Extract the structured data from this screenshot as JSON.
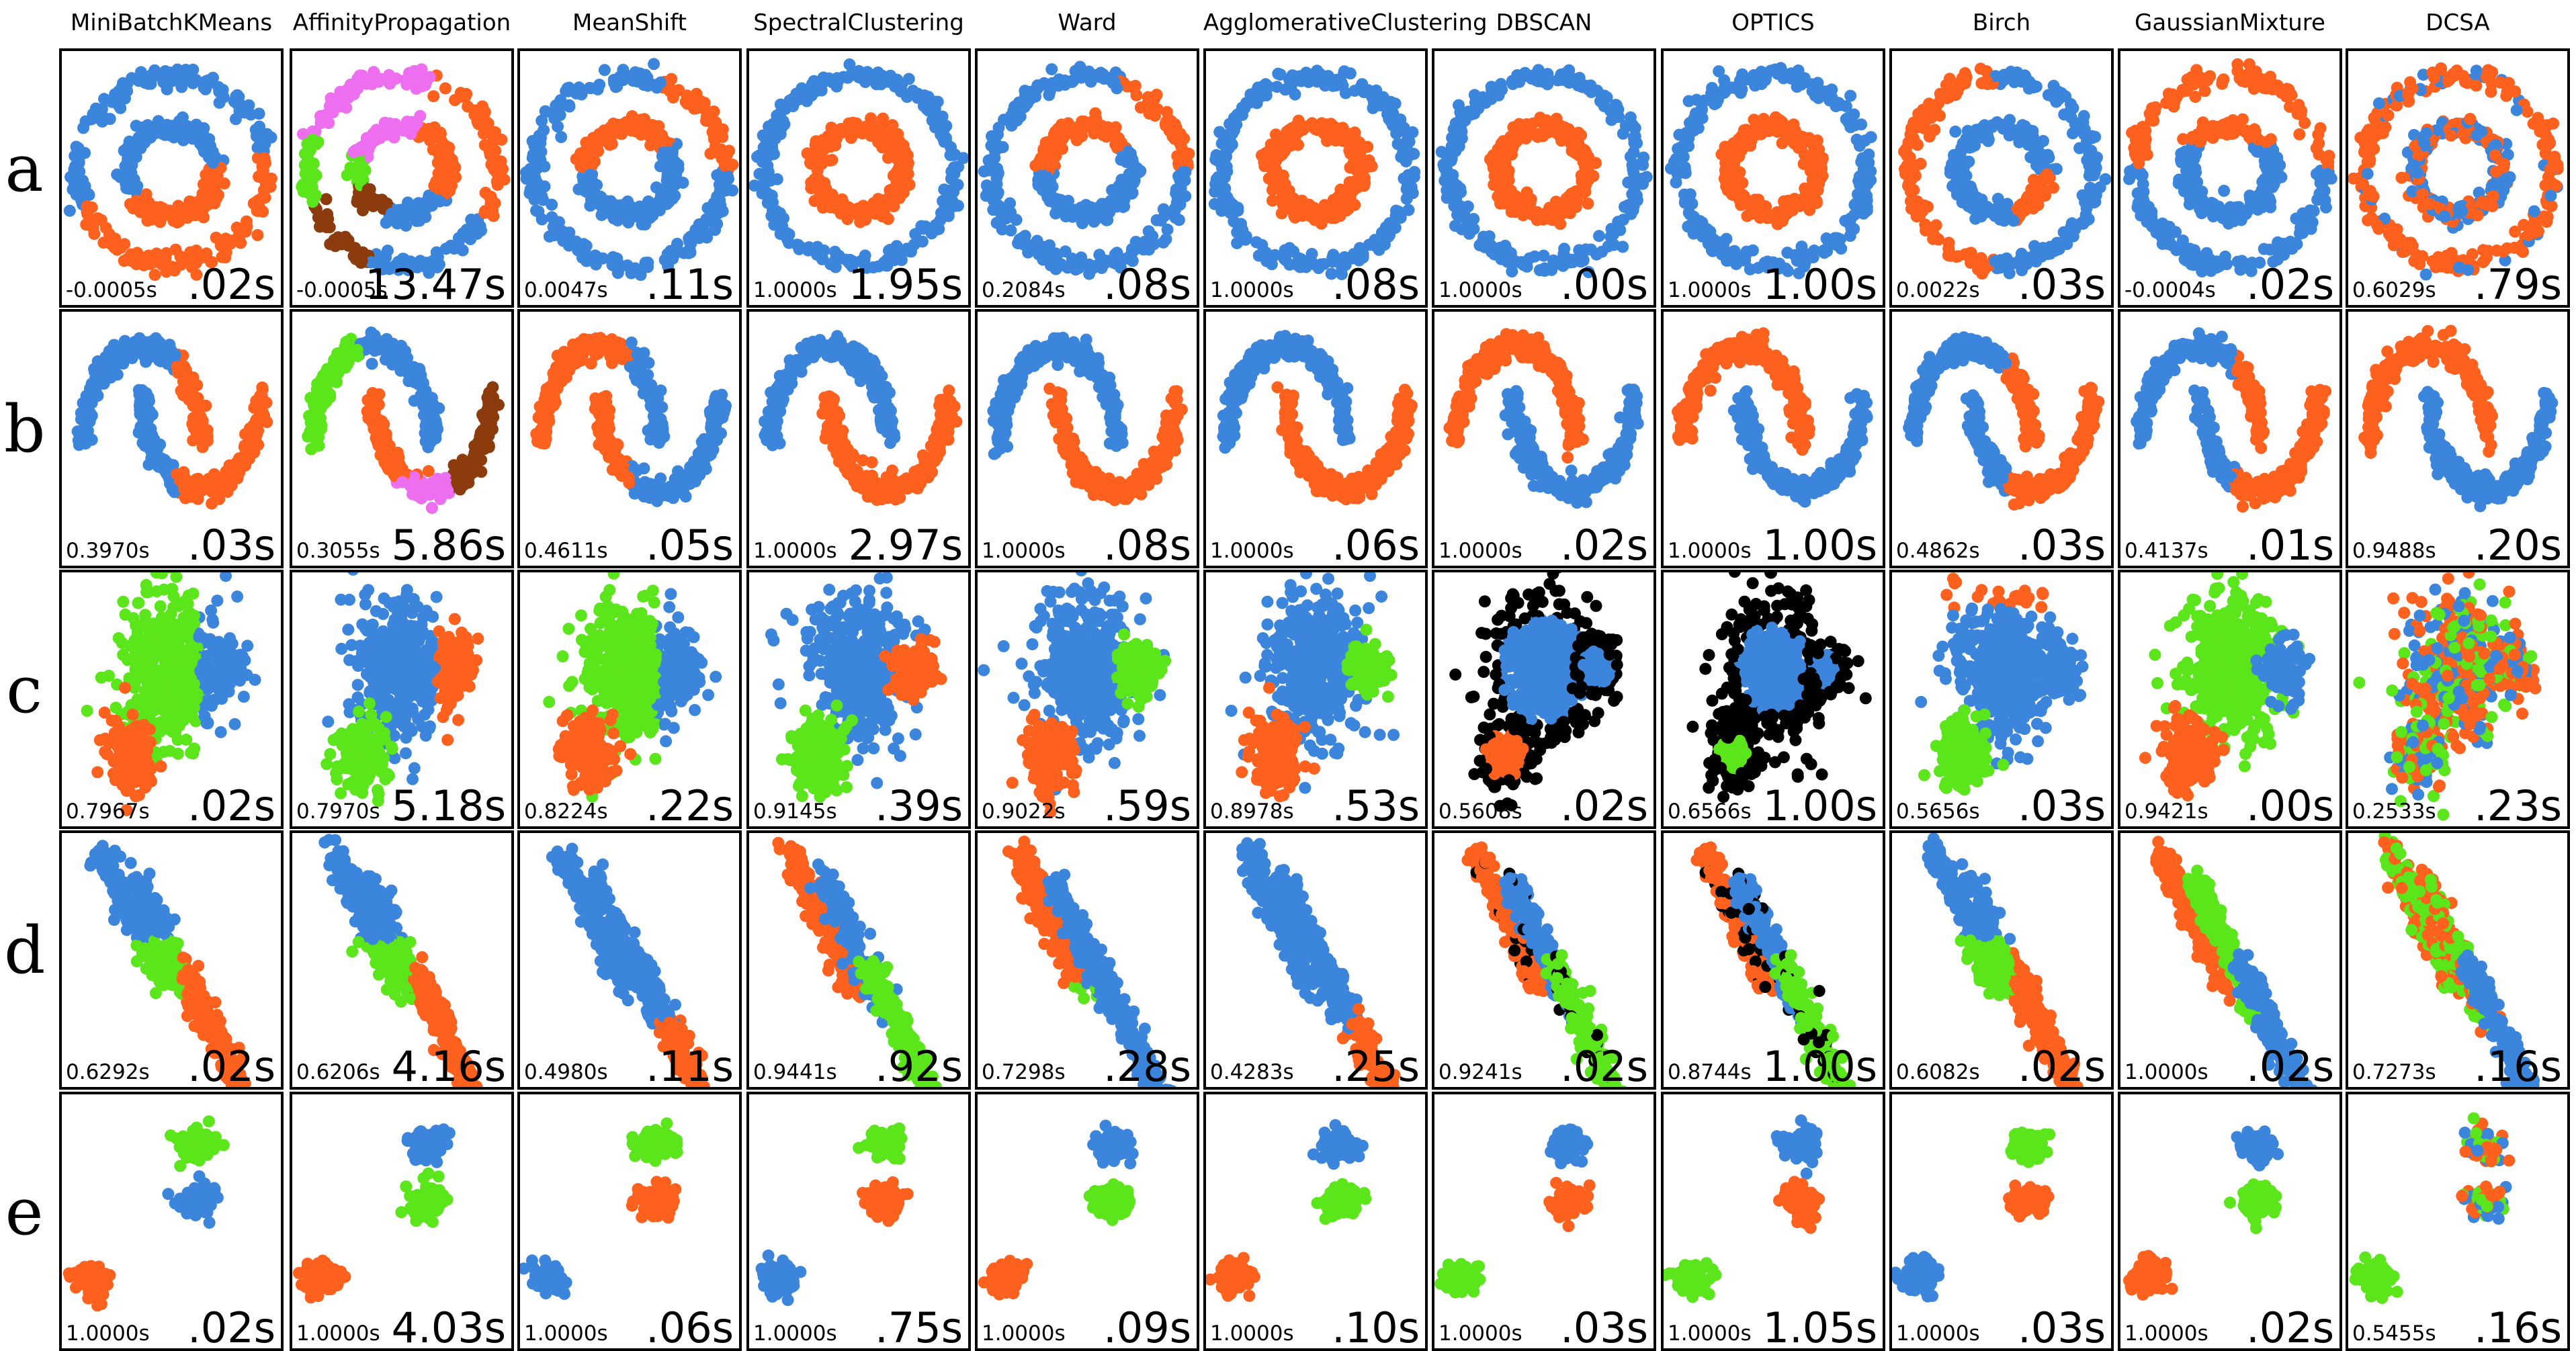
{
  "colors": {
    "blue": "#3b86dc",
    "orange": "#fe611e",
    "green": "#5be51b",
    "pink": "#ee6ef0",
    "brown": "#8b3b0c",
    "black": "#000000"
  },
  "chart_data": {
    "type": "scatter",
    "columns": [
      "MiniBatchKMeans",
      "AffinityPropagation",
      "MeanShift",
      "SpectralClustering",
      "Ward",
      "AgglomerativeClustering",
      "DBSCAN",
      "OPTICS",
      "Birch",
      "GaussianMixture",
      "DCSA"
    ],
    "rows": [
      {
        "label": "a",
        "dataset": "circles",
        "panels": [
          {
            "score": "-0.0005s",
            "time": ".02s",
            "pattern": "split2"
          },
          {
            "score": "-0.0005s",
            "time": "13.47s",
            "pattern": "angle5"
          },
          {
            "score": "0.0047s",
            "time": ".11s",
            "pattern": "mostlyA"
          },
          {
            "score": "1.0000s",
            "time": "1.95s",
            "pattern": "perfect"
          },
          {
            "score": "0.2084s",
            "time": ".08s",
            "pattern": "mostlyA"
          },
          {
            "score": "1.0000s",
            "time": ".08s",
            "pattern": "perfect"
          },
          {
            "score": "1.0000s",
            "time": ".00s",
            "pattern": "perfect"
          },
          {
            "score": "1.0000s",
            "time": "1.00s",
            "pattern": "perfect"
          },
          {
            "score": "0.0022s",
            "time": ".03s",
            "pattern": "split2b"
          },
          {
            "score": "-0.0004s",
            "time": ".02s",
            "pattern": "splitY"
          },
          {
            "score": "0.6029s",
            "time": ".79s",
            "pattern": "mostlyPerfect"
          }
        ]
      },
      {
        "label": "b",
        "dataset": "moons",
        "panels": [
          {
            "score": "0.3970s",
            "time": ".03s",
            "pattern": "kmeans"
          },
          {
            "score": "0.3055s",
            "time": "5.86s",
            "pattern": "affinity"
          },
          {
            "score": "0.4611s",
            "time": ".05s",
            "pattern": "kmeansFlip"
          },
          {
            "score": "1.0000s",
            "time": "2.97s",
            "pattern": "perfect"
          },
          {
            "score": "1.0000s",
            "time": ".08s",
            "pattern": "perfect"
          },
          {
            "score": "1.0000s",
            "time": ".06s",
            "pattern": "perfect"
          },
          {
            "score": "1.0000s",
            "time": ".02s",
            "pattern": "perfectFlip"
          },
          {
            "score": "1.0000s",
            "time": "1.00s",
            "pattern": "perfectFlip"
          },
          {
            "score": "0.4862s",
            "time": ".03s",
            "pattern": "kmeans"
          },
          {
            "score": "0.4137s",
            "time": ".01s",
            "pattern": "kmeans"
          },
          {
            "score": "0.9488s",
            "time": ".20s",
            "pattern": "perfectFlip"
          }
        ]
      },
      {
        "label": "c",
        "dataset": "varied",
        "panels": [
          {
            "score": "0.7967s",
            "time": ".02s",
            "pattern": "c_km"
          },
          {
            "score": "0.7970s",
            "time": "5.18s",
            "pattern": "c_aff"
          },
          {
            "score": "0.8224s",
            "time": ".22s",
            "pattern": "c_km"
          },
          {
            "score": "0.9145s",
            "time": ".39s",
            "pattern": "c_good"
          },
          {
            "score": "0.9022s",
            "time": ".59s",
            "pattern": "c_good2"
          },
          {
            "score": "0.8978s",
            "time": ".53s",
            "pattern": "c_good2"
          },
          {
            "score": "0.5608s",
            "time": ".02s",
            "pattern": "c_dbscan"
          },
          {
            "score": "0.6566s",
            "time": "1.00s",
            "pattern": "c_optics"
          },
          {
            "score": "0.5656s",
            "time": ".03s",
            "pattern": "c_birch"
          },
          {
            "score": "0.9421s",
            "time": ".00s",
            "pattern": "c_gmm"
          },
          {
            "score": "0.2533s",
            "time": ".23s",
            "pattern": "c_dcsa"
          }
        ]
      },
      {
        "label": "d",
        "dataset": "aniso",
        "panels": [
          {
            "score": "0.6292s",
            "time": ".02s",
            "pattern": "d_km"
          },
          {
            "score": "0.6206s",
            "time": "4.16s",
            "pattern": "d_km"
          },
          {
            "score": "0.4980s",
            "time": ".11s",
            "pattern": "d_ms"
          },
          {
            "score": "0.9441s",
            "time": ".92s",
            "pattern": "d_good"
          },
          {
            "score": "0.7298s",
            "time": ".28s",
            "pattern": "d_ward"
          },
          {
            "score": "0.4283s",
            "time": ".25s",
            "pattern": "d_ms"
          },
          {
            "score": "0.9241s",
            "time": ".02s",
            "pattern": "d_dbscan"
          },
          {
            "score": "0.8744s",
            "time": "1.00s",
            "pattern": "d_optics"
          },
          {
            "score": "0.6082s",
            "time": ".02s",
            "pattern": "d_km"
          },
          {
            "score": "1.0000s",
            "time": ".02s",
            "pattern": "d_gmm"
          },
          {
            "score": "0.7273s",
            "time": ".16s",
            "pattern": "d_dcsa"
          }
        ]
      },
      {
        "label": "e",
        "dataset": "blobs",
        "panels": [
          {
            "score": "1.0000s",
            "time": ".02s",
            "pattern": [
              "green",
              "blue",
              "orange"
            ]
          },
          {
            "score": "1.0000s",
            "time": "4.03s",
            "pattern": [
              "blue",
              "green",
              "orange"
            ]
          },
          {
            "score": "1.0000s",
            "time": ".06s",
            "pattern": [
              "green",
              "orange",
              "blue"
            ]
          },
          {
            "score": "1.0000s",
            "time": ".75s",
            "pattern": [
              "green",
              "orange",
              "blue"
            ]
          },
          {
            "score": "1.0000s",
            "time": ".09s",
            "pattern": [
              "blue",
              "green",
              "orange"
            ]
          },
          {
            "score": "1.0000s",
            "time": ".10s",
            "pattern": [
              "blue",
              "green",
              "orange"
            ]
          },
          {
            "score": "1.0000s",
            "time": ".03s",
            "pattern": [
              "blue",
              "orange",
              "green"
            ]
          },
          {
            "score": "1.0000s",
            "time": "1.05s",
            "pattern": [
              "blue",
              "orange",
              "green"
            ]
          },
          {
            "score": "1.0000s",
            "time": ".03s",
            "pattern": [
              "green",
              "orange",
              "blue"
            ]
          },
          {
            "score": "1.0000s",
            "time": ".02s",
            "pattern": [
              "blue",
              "green",
              "orange"
            ]
          },
          {
            "score": "0.5455s",
            "time": ".16s",
            "pattern": [
              "mixed",
              "mixed",
              "green"
            ]
          }
        ]
      }
    ]
  }
}
